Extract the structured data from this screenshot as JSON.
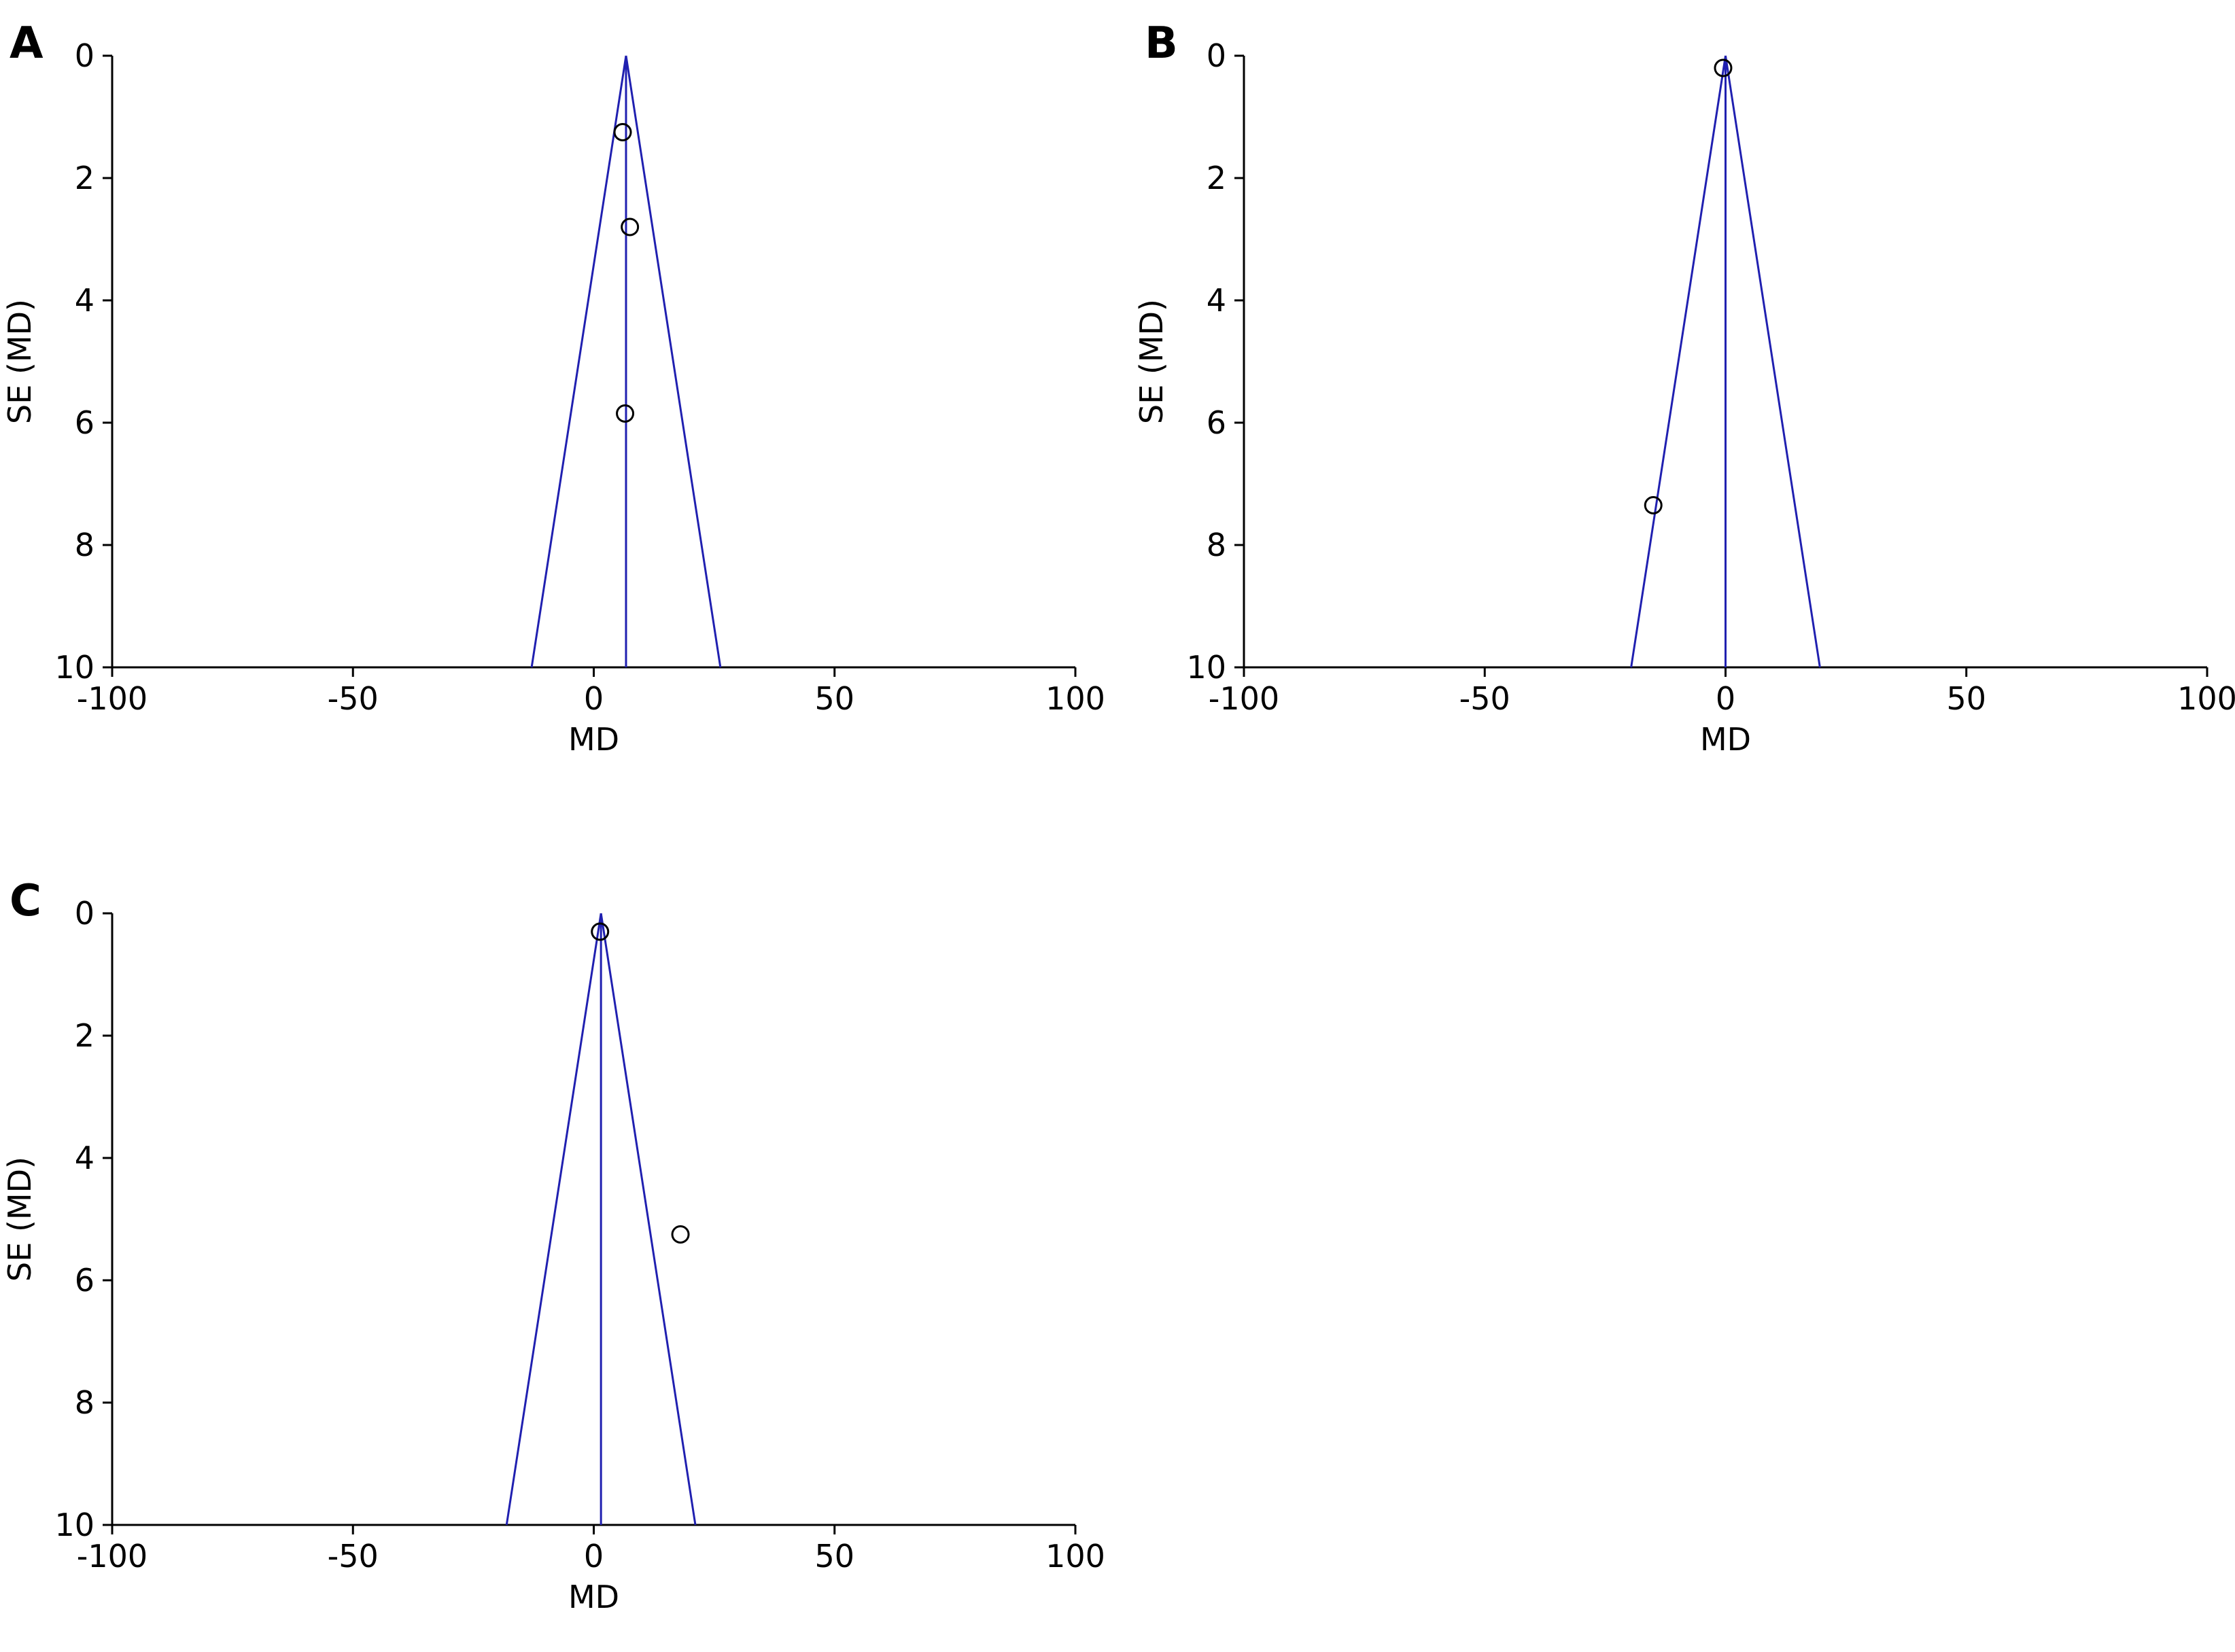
{
  "chart_data": [
    {
      "panel": "A",
      "type": "scatter",
      "xlabel": "MD",
      "ylabel": "SE (MD)",
      "xlim": [
        -100,
        100
      ],
      "ylim": [
        0,
        10
      ],
      "y_inverted": true,
      "x_ticks": [
        -100,
        -50,
        0,
        50,
        100
      ],
      "y_ticks": [
        0,
        2,
        4,
        6,
        8,
        10
      ],
      "pooled_estimate": 6.7,
      "funnel_base": [
        -12.9,
        26.3
      ],
      "points": [
        {
          "x": 6.0,
          "y": 1.25
        },
        {
          "x": 7.5,
          "y": 2.8
        },
        {
          "x": 6.5,
          "y": 5.85
        }
      ],
      "grid": false,
      "legend": "none"
    },
    {
      "panel": "B",
      "type": "scatter",
      "xlabel": "MD",
      "ylabel": "SE (MD)",
      "xlim": [
        -100,
        100
      ],
      "ylim": [
        0,
        10
      ],
      "y_inverted": true,
      "x_ticks": [
        -100,
        -50,
        0,
        50,
        100
      ],
      "y_ticks": [
        0,
        2,
        4,
        6,
        8,
        10
      ],
      "pooled_estimate": 0,
      "funnel_base": [
        -19.6,
        19.6
      ],
      "points": [
        {
          "x": -0.5,
          "y": 0.2
        },
        {
          "x": -15.0,
          "y": 7.35
        }
      ],
      "grid": false,
      "legend": "none"
    },
    {
      "panel": "C",
      "type": "scatter",
      "xlabel": "MD",
      "ylabel": "SE (MD)",
      "xlim": [
        -100,
        100
      ],
      "ylim": [
        0,
        10
      ],
      "y_inverted": true,
      "x_ticks": [
        -100,
        -50,
        0,
        50,
        100
      ],
      "y_ticks": [
        0,
        2,
        4,
        6,
        8,
        10
      ],
      "pooled_estimate": 1.5,
      "funnel_base": [
        -18.1,
        21.1
      ],
      "points": [
        {
          "x": 1.3,
          "y": 0.3
        },
        {
          "x": 18.0,
          "y": 5.25
        }
      ],
      "grid": false,
      "legend": "none"
    }
  ],
  "colors": {
    "funnel": "#2020b0",
    "axis": "#000000",
    "marker": "#000000"
  }
}
